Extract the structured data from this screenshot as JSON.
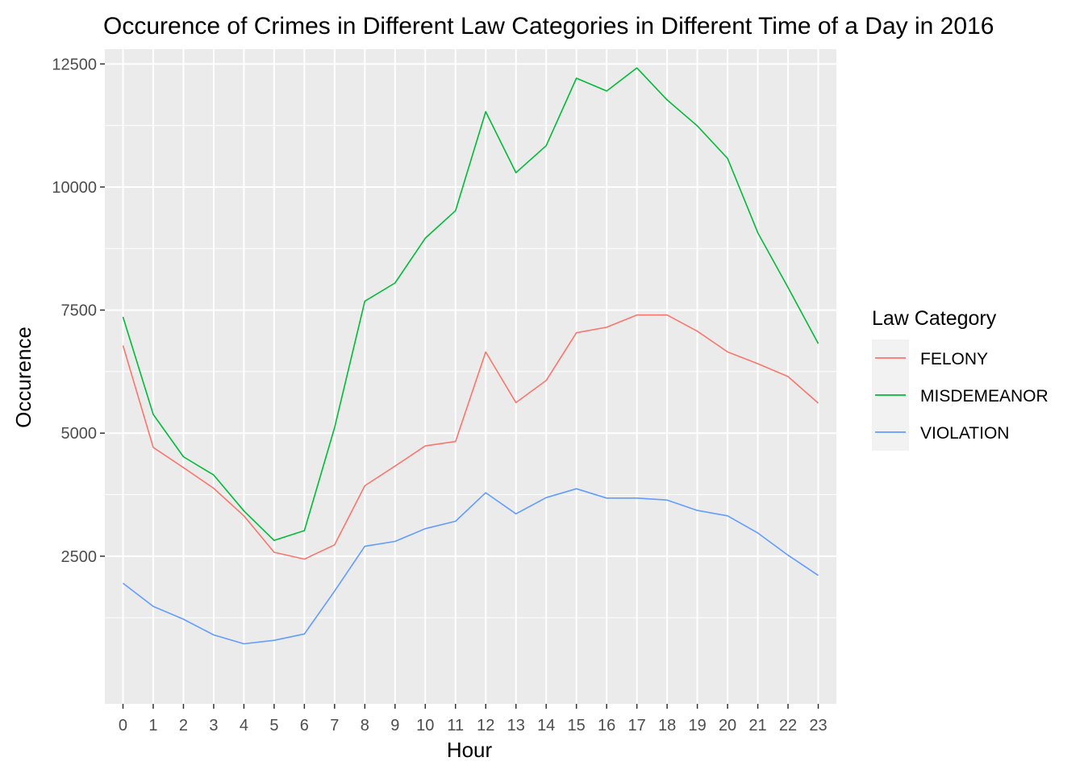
{
  "chart_data": {
    "type": "line",
    "title": "Occurence of Crimes in Different Law Categories in Different Time of a Day in 2016",
    "xlabel": "Hour",
    "ylabel": "Occurence",
    "x": [
      0,
      1,
      2,
      3,
      4,
      5,
      6,
      7,
      8,
      9,
      10,
      11,
      12,
      13,
      14,
      15,
      16,
      17,
      18,
      19,
      20,
      21,
      22,
      23
    ],
    "x_ticks": [
      "0",
      "1",
      "2",
      "3",
      "4",
      "5",
      "6",
      "7",
      "8",
      "9",
      "10",
      "11",
      "12",
      "13",
      "14",
      "15",
      "16",
      "17",
      "18",
      "19",
      "20",
      "21",
      "22",
      "23"
    ],
    "y_ticks": [
      "2500",
      "5000",
      "7500",
      "10000",
      "12500"
    ],
    "ylim": [
      -500,
      12800
    ],
    "grid": true,
    "background": "#ebebeb",
    "legend": {
      "title": "Law Category",
      "position": "right"
    },
    "series": [
      {
        "name": "FELONY",
        "color": "#f8766d",
        "values": [
          6780,
          4710,
          4300,
          3880,
          3320,
          2580,
          2440,
          2730,
          3930,
          4330,
          4740,
          4830,
          6650,
          5620,
          6070,
          7040,
          7150,
          7400,
          7400,
          7070,
          6650,
          6410,
          6150,
          5610
        ]
      },
      {
        "name": "MISDEMEANOR",
        "color": "#00ba38",
        "values": [
          7360,
          5380,
          4520,
          4150,
          3420,
          2820,
          3020,
          5110,
          7680,
          8050,
          8960,
          9520,
          11530,
          10290,
          10840,
          12210,
          11950,
          12420,
          11770,
          11240,
          10580,
          9070,
          7960,
          6820
        ]
      },
      {
        "name": "VIOLATION",
        "color": "#619cff",
        "values": [
          1950,
          1480,
          1220,
          900,
          720,
          790,
          920,
          1790,
          2700,
          2800,
          3060,
          3210,
          3790,
          3360,
          3690,
          3870,
          3680,
          3680,
          3640,
          3430,
          3320,
          2970,
          2520,
          2110
        ]
      }
    ]
  }
}
